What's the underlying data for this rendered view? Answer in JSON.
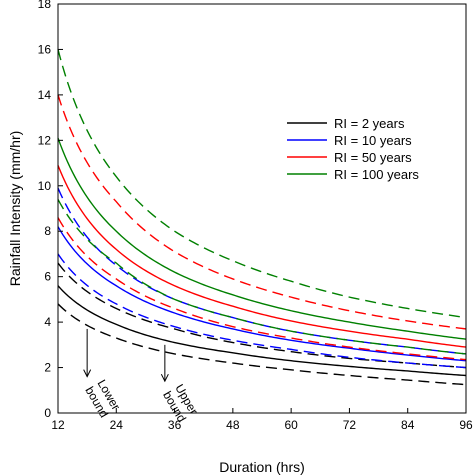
{
  "chart_data": {
    "type": "line",
    "xlabel": "Duration (hrs)",
    "ylabel": "Rainfall Intensity (mm/hr)",
    "xlim": [
      12,
      96
    ],
    "ylim": [
      0,
      18
    ],
    "xticks": [
      12,
      24,
      36,
      48,
      60,
      72,
      84,
      96
    ],
    "yticks": [
      0,
      2,
      4,
      6,
      8,
      10,
      12,
      14,
      16,
      18
    ],
    "xtick_labels": [
      "12",
      "24",
      "36",
      "48",
      "60",
      "72",
      "84",
      "96"
    ],
    "ytick_labels": [
      "0",
      "2",
      "4",
      "6",
      "8",
      "10",
      "12",
      "14",
      "16",
      "18"
    ],
    "grid": false,
    "legend_position": "top-right",
    "legend": [
      {
        "label": "RI = 2 years",
        "color": "#000000"
      },
      {
        "label": "RI = 10 years",
        "color": "#0000ff"
      },
      {
        "label": "RI = 50 years",
        "color": "#ff0000"
      },
      {
        "label": "RI = 100 years",
        "color": "#008000"
      }
    ],
    "annotations": [
      {
        "text_lines": [
          "Lower",
          "bound"
        ],
        "arrow_x": 18,
        "arrow_y_from": 3.7,
        "arrow_y_to": 1.6
      },
      {
        "text_lines": [
          "Upper",
          "bound"
        ],
        "arrow_x": 34,
        "arrow_y_from": 3.0,
        "arrow_y_to": 1.4
      }
    ],
    "x": [
      12,
      24,
      36,
      48,
      60,
      72,
      84,
      96
    ],
    "series": [
      {
        "ri": "2 years",
        "bound": "mean",
        "style": "solid",
        "color": "#000000",
        "values": [
          5.6,
          3.9,
          3.1,
          2.65,
          2.3,
          2.05,
          1.85,
          1.65
        ]
      },
      {
        "ri": "2 years",
        "bound": "lower",
        "style": "dashed",
        "color": "#000000",
        "values": [
          4.8,
          3.3,
          2.6,
          2.2,
          1.9,
          1.65,
          1.45,
          1.25
        ]
      },
      {
        "ri": "2 years",
        "bound": "upper",
        "style": "dashed",
        "color": "#000000",
        "values": [
          6.6,
          4.6,
          3.7,
          3.1,
          2.7,
          2.4,
          2.2,
          2.0
        ]
      },
      {
        "ri": "10 years",
        "bound": "mean",
        "style": "solid",
        "color": "#0000ff",
        "values": [
          8.2,
          5.6,
          4.4,
          3.7,
          3.2,
          2.85,
          2.55,
          2.3
        ]
      },
      {
        "ri": "10 years",
        "bound": "lower",
        "style": "dashed",
        "color": "#0000ff",
        "values": [
          7.0,
          4.8,
          3.8,
          3.2,
          2.8,
          2.45,
          2.2,
          2.0
        ]
      },
      {
        "ri": "10 years",
        "bound": "upper",
        "style": "dashed",
        "color": "#0000ff",
        "values": [
          9.9,
          6.5,
          5.0,
          4.2,
          3.6,
          3.2,
          2.9,
          2.6
        ]
      },
      {
        "ri": "50 years",
        "bound": "mean",
        "style": "solid",
        "color": "#ff0000",
        "values": [
          10.9,
          7.2,
          5.6,
          4.7,
          4.05,
          3.6,
          3.25,
          2.9
        ]
      },
      {
        "ri": "50 years",
        "bound": "lower",
        "style": "dashed",
        "color": "#ff0000",
        "values": [
          8.6,
          5.9,
          4.6,
          3.8,
          3.3,
          2.9,
          2.6,
          2.35
        ]
      },
      {
        "ri": "50 years",
        "bound": "upper",
        "style": "dashed",
        "color": "#ff0000",
        "values": [
          14.0,
          9.3,
          7.1,
          5.9,
          5.1,
          4.5,
          4.05,
          3.7
        ]
      },
      {
        "ri": "100 years",
        "bound": "mean",
        "style": "solid",
        "color": "#008000",
        "values": [
          12.1,
          8.0,
          6.2,
          5.2,
          4.5,
          4.0,
          3.6,
          3.25
        ]
      },
      {
        "ri": "100 years",
        "bound": "lower",
        "style": "dashed",
        "color": "#008000",
        "values": [
          9.4,
          6.6,
          5.0,
          4.2,
          3.6,
          3.2,
          2.9,
          2.6
        ]
      },
      {
        "ri": "100 years",
        "bound": "upper",
        "style": "dashed",
        "color": "#008000",
        "values": [
          16.0,
          10.4,
          8.0,
          6.7,
          5.8,
          5.1,
          4.6,
          4.2
        ]
      }
    ]
  }
}
